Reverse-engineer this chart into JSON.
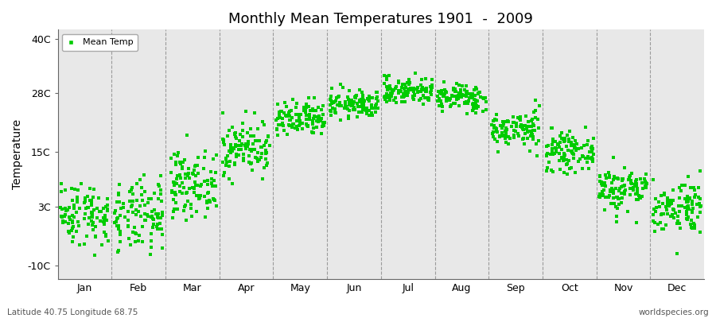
{
  "title": "Monthly Mean Temperatures 1901  -  2009",
  "ylabel": "Temperature",
  "yticks": [
    -10,
    3,
    15,
    28,
    40
  ],
  "ytick_labels": [
    "-10C",
    "3C",
    "15C",
    "28C",
    "40C"
  ],
  "ylim": [
    -13,
    42
  ],
  "months": [
    "Jan",
    "Feb",
    "Mar",
    "Apr",
    "May",
    "Jun",
    "Jul",
    "Aug",
    "Sep",
    "Oct",
    "Nov",
    "Dec"
  ],
  "dot_color": "#00CC00",
  "dot_size": 5,
  "background_color": "#E8E8E8",
  "grid_color": "#888888",
  "title_fontsize": 13,
  "axis_fontsize": 9,
  "legend_label": "Mean Temp",
  "footer_left": "Latitude 40.75 Longitude 68.75",
  "footer_right": "worldspecies.org",
  "monthly_params": {
    "Jan": {
      "mean": 1.5,
      "std": 3.5
    },
    "Feb": {
      "mean": 0.5,
      "std": 4.0
    },
    "Mar": {
      "mean": 8.0,
      "std": 3.5
    },
    "Apr": {
      "mean": 16.0,
      "std": 3.0
    },
    "May": {
      "mean": 22.0,
      "std": 2.0
    },
    "Jun": {
      "mean": 25.5,
      "std": 1.5
    },
    "Jul": {
      "mean": 28.5,
      "std": 1.5
    },
    "Aug": {
      "mean": 27.0,
      "std": 1.5
    },
    "Sep": {
      "mean": 20.0,
      "std": 2.0
    },
    "Oct": {
      "mean": 15.0,
      "std": 2.0
    },
    "Nov": {
      "mean": 7.0,
      "std": 2.5
    },
    "Dec": {
      "mean": 3.0,
      "std": 3.0
    }
  }
}
